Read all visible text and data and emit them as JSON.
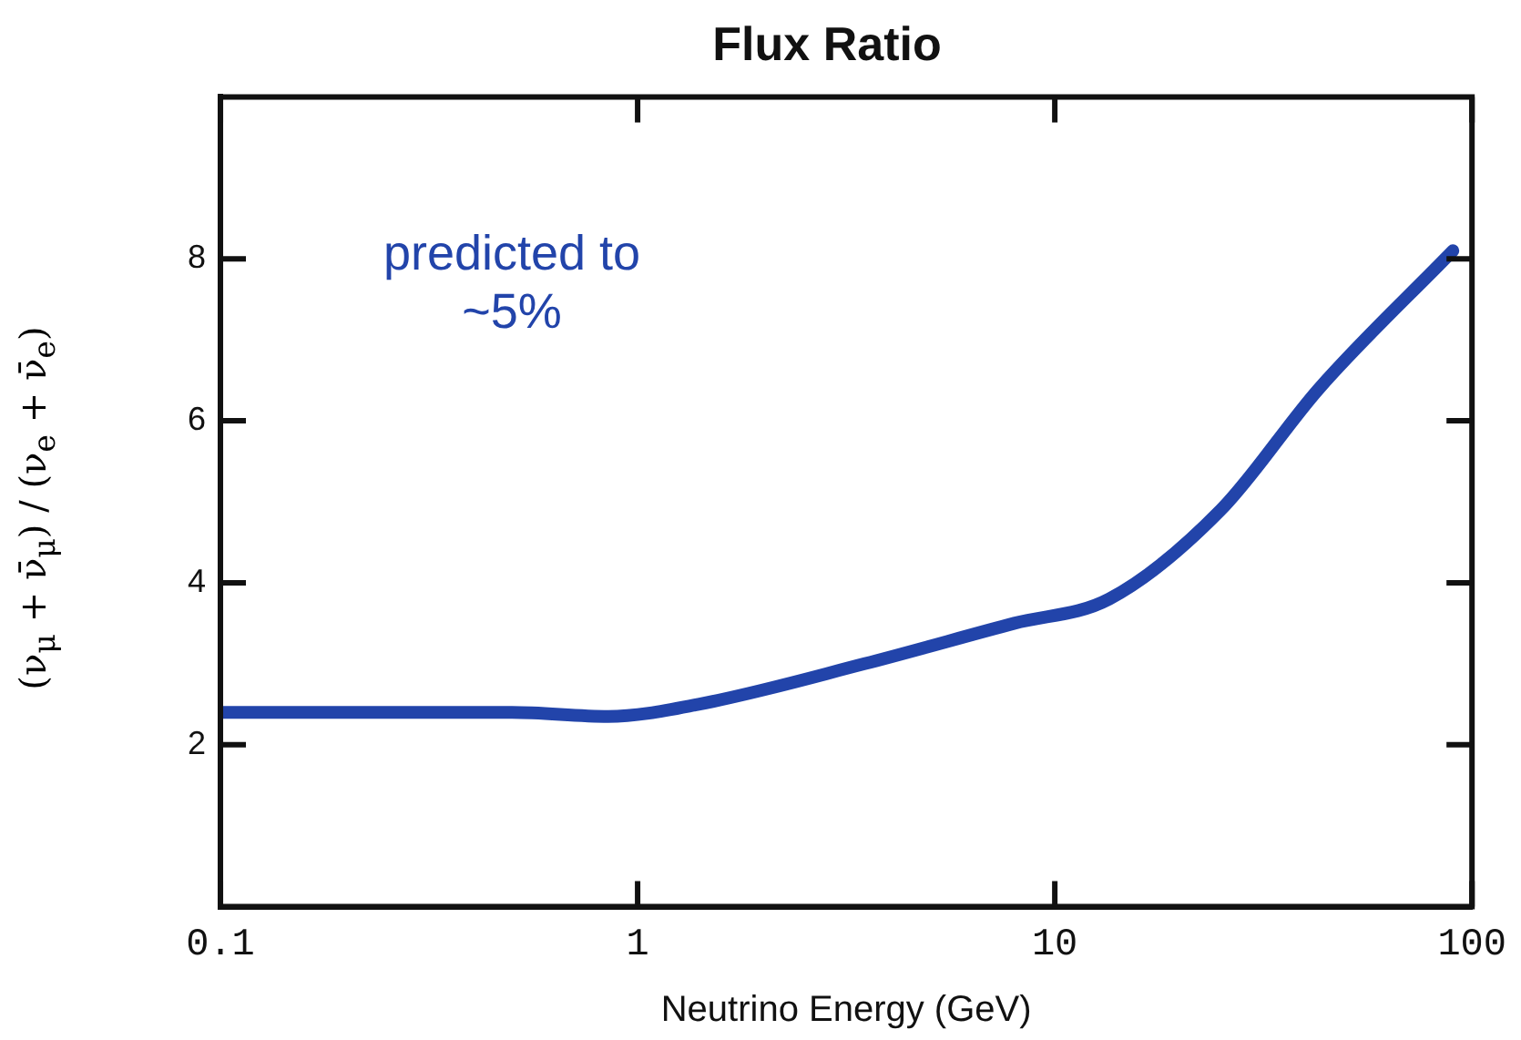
{
  "chart_data": {
    "type": "line",
    "title": "Flux Ratio",
    "xlabel": "Neutrino Energy (GeV)",
    "ylabel": "(ν$_{μ}$ + ν̄$_{μ}$) / (ν$_{e}$ + ν̄$_{e}$)",
    "annotations": [
      "predicted to\n~5%"
    ],
    "x": [
      0.1,
      0.5,
      0.85,
      1.4,
      3.5,
      8,
      13.5,
      25,
      43,
      90
    ],
    "series": [
      {
        "color": "#2244aa",
        "values": [
          2.4,
          2.4,
          2.35,
          2.5,
          3.0,
          3.5,
          3.8,
          4.9,
          6.4,
          8.1
        ]
      }
    ],
    "log": "x",
    "xlim": [
      0.1,
      100
    ],
    "xticks": [
      0.1,
      1,
      10,
      100
    ],
    "ylim": [
      0,
      10
    ],
    "yticks": [
      2,
      4,
      6,
      8
    ],
    "grid": false,
    "legend": false,
    "marker": "none",
    "line_style": "solid"
  }
}
